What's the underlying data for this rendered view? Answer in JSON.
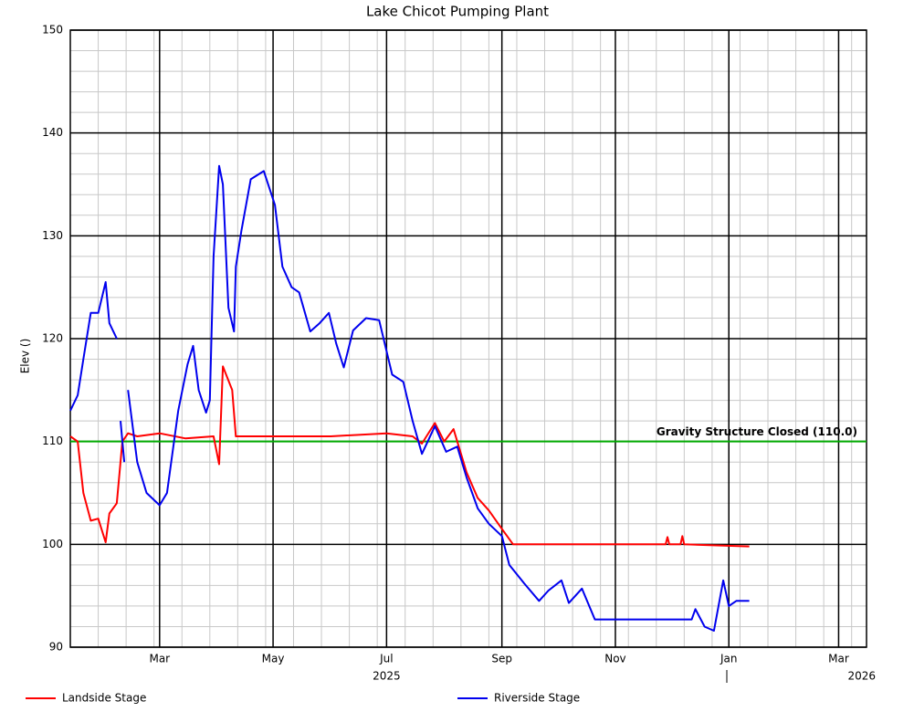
{
  "chart_data": {
    "type": "line",
    "title": "Lake Chicot Pumping Plant",
    "y_label": "Elev ()",
    "xlim": [
      "2025-01-12",
      "2026-03-16"
    ],
    "xticks": [
      {
        "value": "2025-03-01",
        "label": "Mar"
      },
      {
        "value": "2025-05-01",
        "label": "May"
      },
      {
        "value": "2025-07-01",
        "label": "Jul"
      },
      {
        "value": "2025-09-01",
        "label": "Sep"
      },
      {
        "value": "2025-11-01",
        "label": "Nov"
      },
      {
        "value": "2026-01-01",
        "label": "Jan"
      },
      {
        "value": "2026-03-01",
        "label": "Mar"
      }
    ],
    "x_year_labels": [
      {
        "value": "2025-07-01",
        "label": "2025"
      },
      {
        "value": "2026-03-01",
        "label": "2026"
      }
    ],
    "ylim": [
      90,
      150
    ],
    "yticks": [
      90,
      100,
      110,
      120,
      130,
      140,
      150
    ],
    "grid": true,
    "minor_grid": true,
    "reference_line": {
      "value": 110,
      "label": "Gravity Structure Closed (110.0)",
      "color": "#00aa00"
    },
    "series": [
      {
        "name": "Landside Stage",
        "color": "#ff0000",
        "x": [
          "2025-01-12",
          "2025-01-16",
          "2025-01-19",
          "2025-01-23",
          "2025-01-27",
          "2025-01-31",
          "2025-02-02",
          "2025-02-06",
          "2025-02-09",
          "2025-02-12",
          "2025-02-17",
          "2025-03-01",
          "2025-03-15",
          "2025-03-30",
          "2025-04-02",
          "2025-04-04",
          "2025-04-09",
          "2025-04-11",
          "2025-05-01",
          "2025-06-01",
          "2025-07-01",
          "2025-07-15",
          "2025-07-20",
          "2025-07-27",
          "2025-08-01",
          "2025-08-06",
          "2025-08-13",
          "2025-08-19",
          "2025-08-25",
          "2025-09-01",
          "2025-09-07",
          "2025-11-01",
          "2025-11-28",
          "2025-11-29",
          "2025-11-30",
          "2025-12-06",
          "2025-12-07",
          "2025-12-08",
          "2026-01-12"
        ],
        "values": [
          110.5,
          110,
          105,
          102.3,
          102.5,
          100.2,
          103,
          104,
          110,
          110.8,
          110.5,
          110.8,
          110.3,
          110.5,
          107.8,
          117.3,
          115,
          110.5,
          110.5,
          110.5,
          110.8,
          110.5,
          109.8,
          111.8,
          110,
          111.2,
          107,
          104.5,
          103.3,
          101.5,
          100,
          100,
          100,
          100.7,
          100,
          100,
          100.8,
          100,
          99.8
        ]
      },
      {
        "name": "Riverside Stage",
        "color": "#0000ee",
        "x": [
          "2025-01-12",
          "2025-01-16",
          "2025-01-19",
          "2025-01-23",
          "2025-01-27",
          "2025-01-31",
          "2025-02-02",
          "2025-02-06",
          "2025-02-07",
          "2025-02-08",
          "2025-02-10",
          "2025-02-11",
          "2025-02-12",
          "2025-02-17",
          "2025-02-22",
          "2025-03-01",
          "2025-03-05",
          "2025-03-11",
          "2025-03-16",
          "2025-03-19",
          "2025-03-22",
          "2025-03-26",
          "2025-03-28",
          "2025-03-30",
          "2025-04-02",
          "2025-04-04",
          "2025-04-07",
          "2025-04-10",
          "2025-04-11",
          "2025-04-14",
          "2025-04-19",
          "2025-04-26",
          "2025-05-02",
          "2025-05-06",
          "2025-05-11",
          "2025-05-15",
          "2025-05-21",
          "2025-05-26",
          "2025-05-31",
          "2025-06-04",
          "2025-06-08",
          "2025-06-13",
          "2025-06-20",
          "2025-06-27",
          "2025-07-04",
          "2025-07-10",
          "2025-07-15",
          "2025-07-20",
          "2025-07-27",
          "2025-08-02",
          "2025-08-08",
          "2025-08-13",
          "2025-08-19",
          "2025-08-25",
          "2025-09-01",
          "2025-09-05",
          "2025-09-13",
          "2025-09-21",
          "2025-09-26",
          "2025-10-03",
          "2025-10-07",
          "2025-10-14",
          "2025-10-21",
          "2025-11-01",
          "2025-12-12",
          "2025-12-14",
          "2025-12-19",
          "2025-12-24",
          "2025-12-29",
          "2026-01-01",
          "2026-01-05",
          "2026-01-12"
        ],
        "values": [
          113,
          114.5,
          118,
          122.5,
          122.5,
          125.5,
          121.5,
          120,
          null,
          112,
          108,
          null,
          115,
          108,
          105,
          103.8,
          105,
          113,
          117.5,
          119.3,
          115,
          112.8,
          114,
          128,
          136.8,
          135,
          123,
          120.7,
          127,
          130.5,
          135.5,
          136.3,
          133,
          127,
          125,
          124.5,
          120.7,
          121.5,
          122.5,
          119.5,
          117.2,
          120.8,
          122,
          121.8,
          116.5,
          115.8,
          112,
          108.8,
          111.5,
          109,
          109.5,
          106.5,
          103.5,
          102,
          100.8,
          98,
          96.2,
          94.5,
          95.5,
          96.5,
          94.3,
          95.7,
          92.7,
          92.7,
          92.7,
          93.7,
          92,
          91.6,
          96.5,
          94,
          94.5,
          94.5
        ]
      }
    ]
  }
}
